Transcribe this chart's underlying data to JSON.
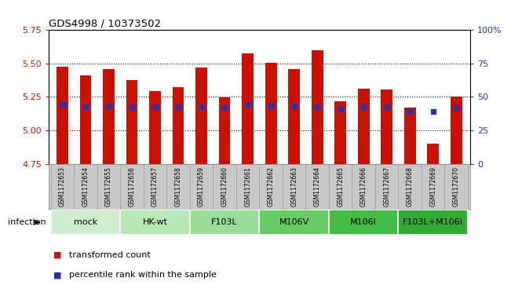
{
  "title": "GDS4998 / 10373502",
  "samples": [
    "GSM1172653",
    "GSM1172654",
    "GSM1172655",
    "GSM1172656",
    "GSM1172657",
    "GSM1172658",
    "GSM1172659",
    "GSM1172660",
    "GSM1172661",
    "GSM1172662",
    "GSM1172663",
    "GSM1172664",
    "GSM1172665",
    "GSM1172666",
    "GSM1172667",
    "GSM1172668",
    "GSM1172669",
    "GSM1172670"
  ],
  "bar_tops": [
    5.475,
    5.41,
    5.46,
    5.375,
    5.295,
    5.325,
    5.47,
    5.245,
    5.575,
    5.505,
    5.46,
    5.6,
    5.22,
    5.31,
    5.305,
    5.17,
    4.9,
    5.25
  ],
  "blue_y": [
    5.195,
    5.175,
    5.185,
    5.175,
    5.175,
    5.175,
    5.175,
    5.17,
    5.195,
    5.185,
    5.185,
    5.175,
    5.16,
    5.175,
    5.175,
    5.14,
    5.14,
    5.17
  ],
  "bar_bottom": 4.75,
  "ymin": 4.75,
  "ymax": 5.75,
  "yticks_left": [
    4.75,
    5.0,
    5.25,
    5.5,
    5.75
  ],
  "yticks_right": [
    0,
    25,
    50,
    75,
    100
  ],
  "bar_color": "#cc1100",
  "blue_color": "#2233bb",
  "bar_width": 0.5,
  "blue_marker_size": 4,
  "groups": [
    {
      "label": "mock",
      "start": 0,
      "end": 2,
      "color": "#cceecc"
    },
    {
      "label": "HK-wt",
      "start": 3,
      "end": 5,
      "color": "#b8e8b8"
    },
    {
      "label": "F103L",
      "start": 6,
      "end": 8,
      "color": "#99dd99"
    },
    {
      "label": "M106V",
      "start": 9,
      "end": 11,
      "color": "#66cc66"
    },
    {
      "label": "M106I",
      "start": 12,
      "end": 14,
      "color": "#44bb44"
    },
    {
      "label": "F103L+M106I",
      "start": 15,
      "end": 17,
      "color": "#33aa33"
    }
  ],
  "legend_red": "transformed count",
  "legend_blue": "percentile rank within the sample",
  "infection_label": "infection",
  "xtick_bg": "#c8c8c8",
  "xtick_border": "#999999"
}
